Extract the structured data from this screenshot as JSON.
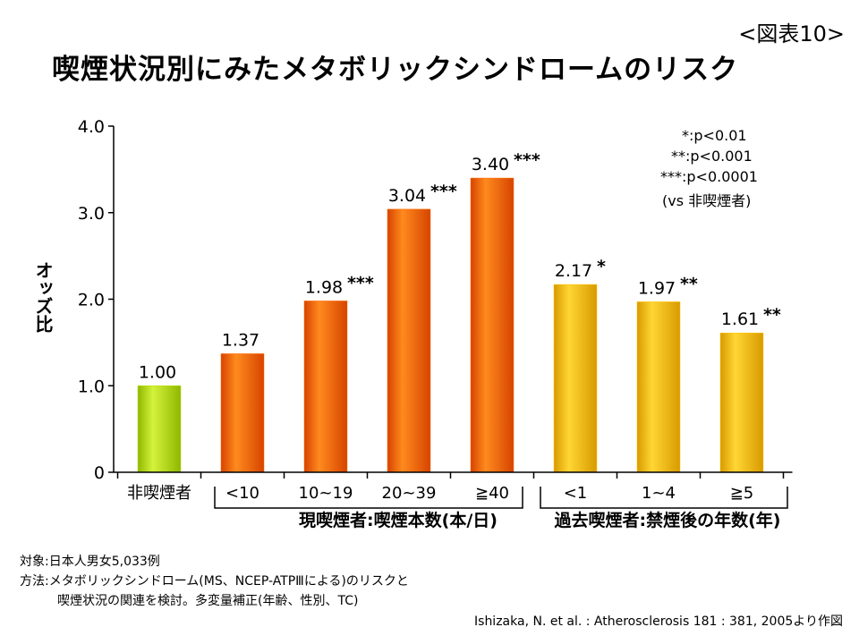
{
  "figure_number": "<図表10>",
  "title": "喫煙状況別にみたメタボリックシンドロームのリスク",
  "legend": [
    "*:p<0.01",
    "**:p<0.001",
    "***:p<0.0001",
    "(vs 非喫煙者)"
  ],
  "notes": {
    "subjects": "対象:日本人男女5,033例",
    "method": "方法:メタボリックシンドローム(MS、NCEP-ATPⅢによる)のリスクと",
    "method_cont": "喫煙状況の関連を検討。多変量補正(年齢、性別、TC)"
  },
  "citation": "Ishizaka, N. et al. : Atherosclerosis 181 : 381, 2005より作図",
  "colors": {
    "reference": "#b8e000",
    "current": "#ff6a00",
    "former": "#ffc400"
  },
  "chart_data": {
    "type": "bar",
    "ylabel": "オッズ比",
    "ylim": [
      0,
      4.0
    ],
    "yticks": [
      "0",
      "1.0",
      "2.0",
      "3.0",
      "4.0"
    ],
    "grid": false,
    "categories": [
      "非喫煙者",
      "<10",
      "10~19",
      "20~39",
      "≧40",
      "<1",
      "1~4",
      "≧5"
    ],
    "values": [
      1.0,
      1.37,
      1.98,
      3.04,
      3.4,
      2.17,
      1.97,
      1.61
    ],
    "value_labels": [
      "1.00",
      "1.37",
      "1.98",
      "3.04",
      "3.40",
      "2.17",
      "1.97",
      "1.61"
    ],
    "significance": [
      "",
      "",
      "***",
      "***",
      "***",
      "*",
      "**",
      "**"
    ],
    "groups": [
      "reference",
      "current",
      "current",
      "current",
      "current",
      "former",
      "former",
      "former"
    ],
    "group_labels": {
      "current": "現喫煙者:喫煙本数(本/日)",
      "former": "過去喫煙者:禁煙後の年数(年)"
    }
  }
}
